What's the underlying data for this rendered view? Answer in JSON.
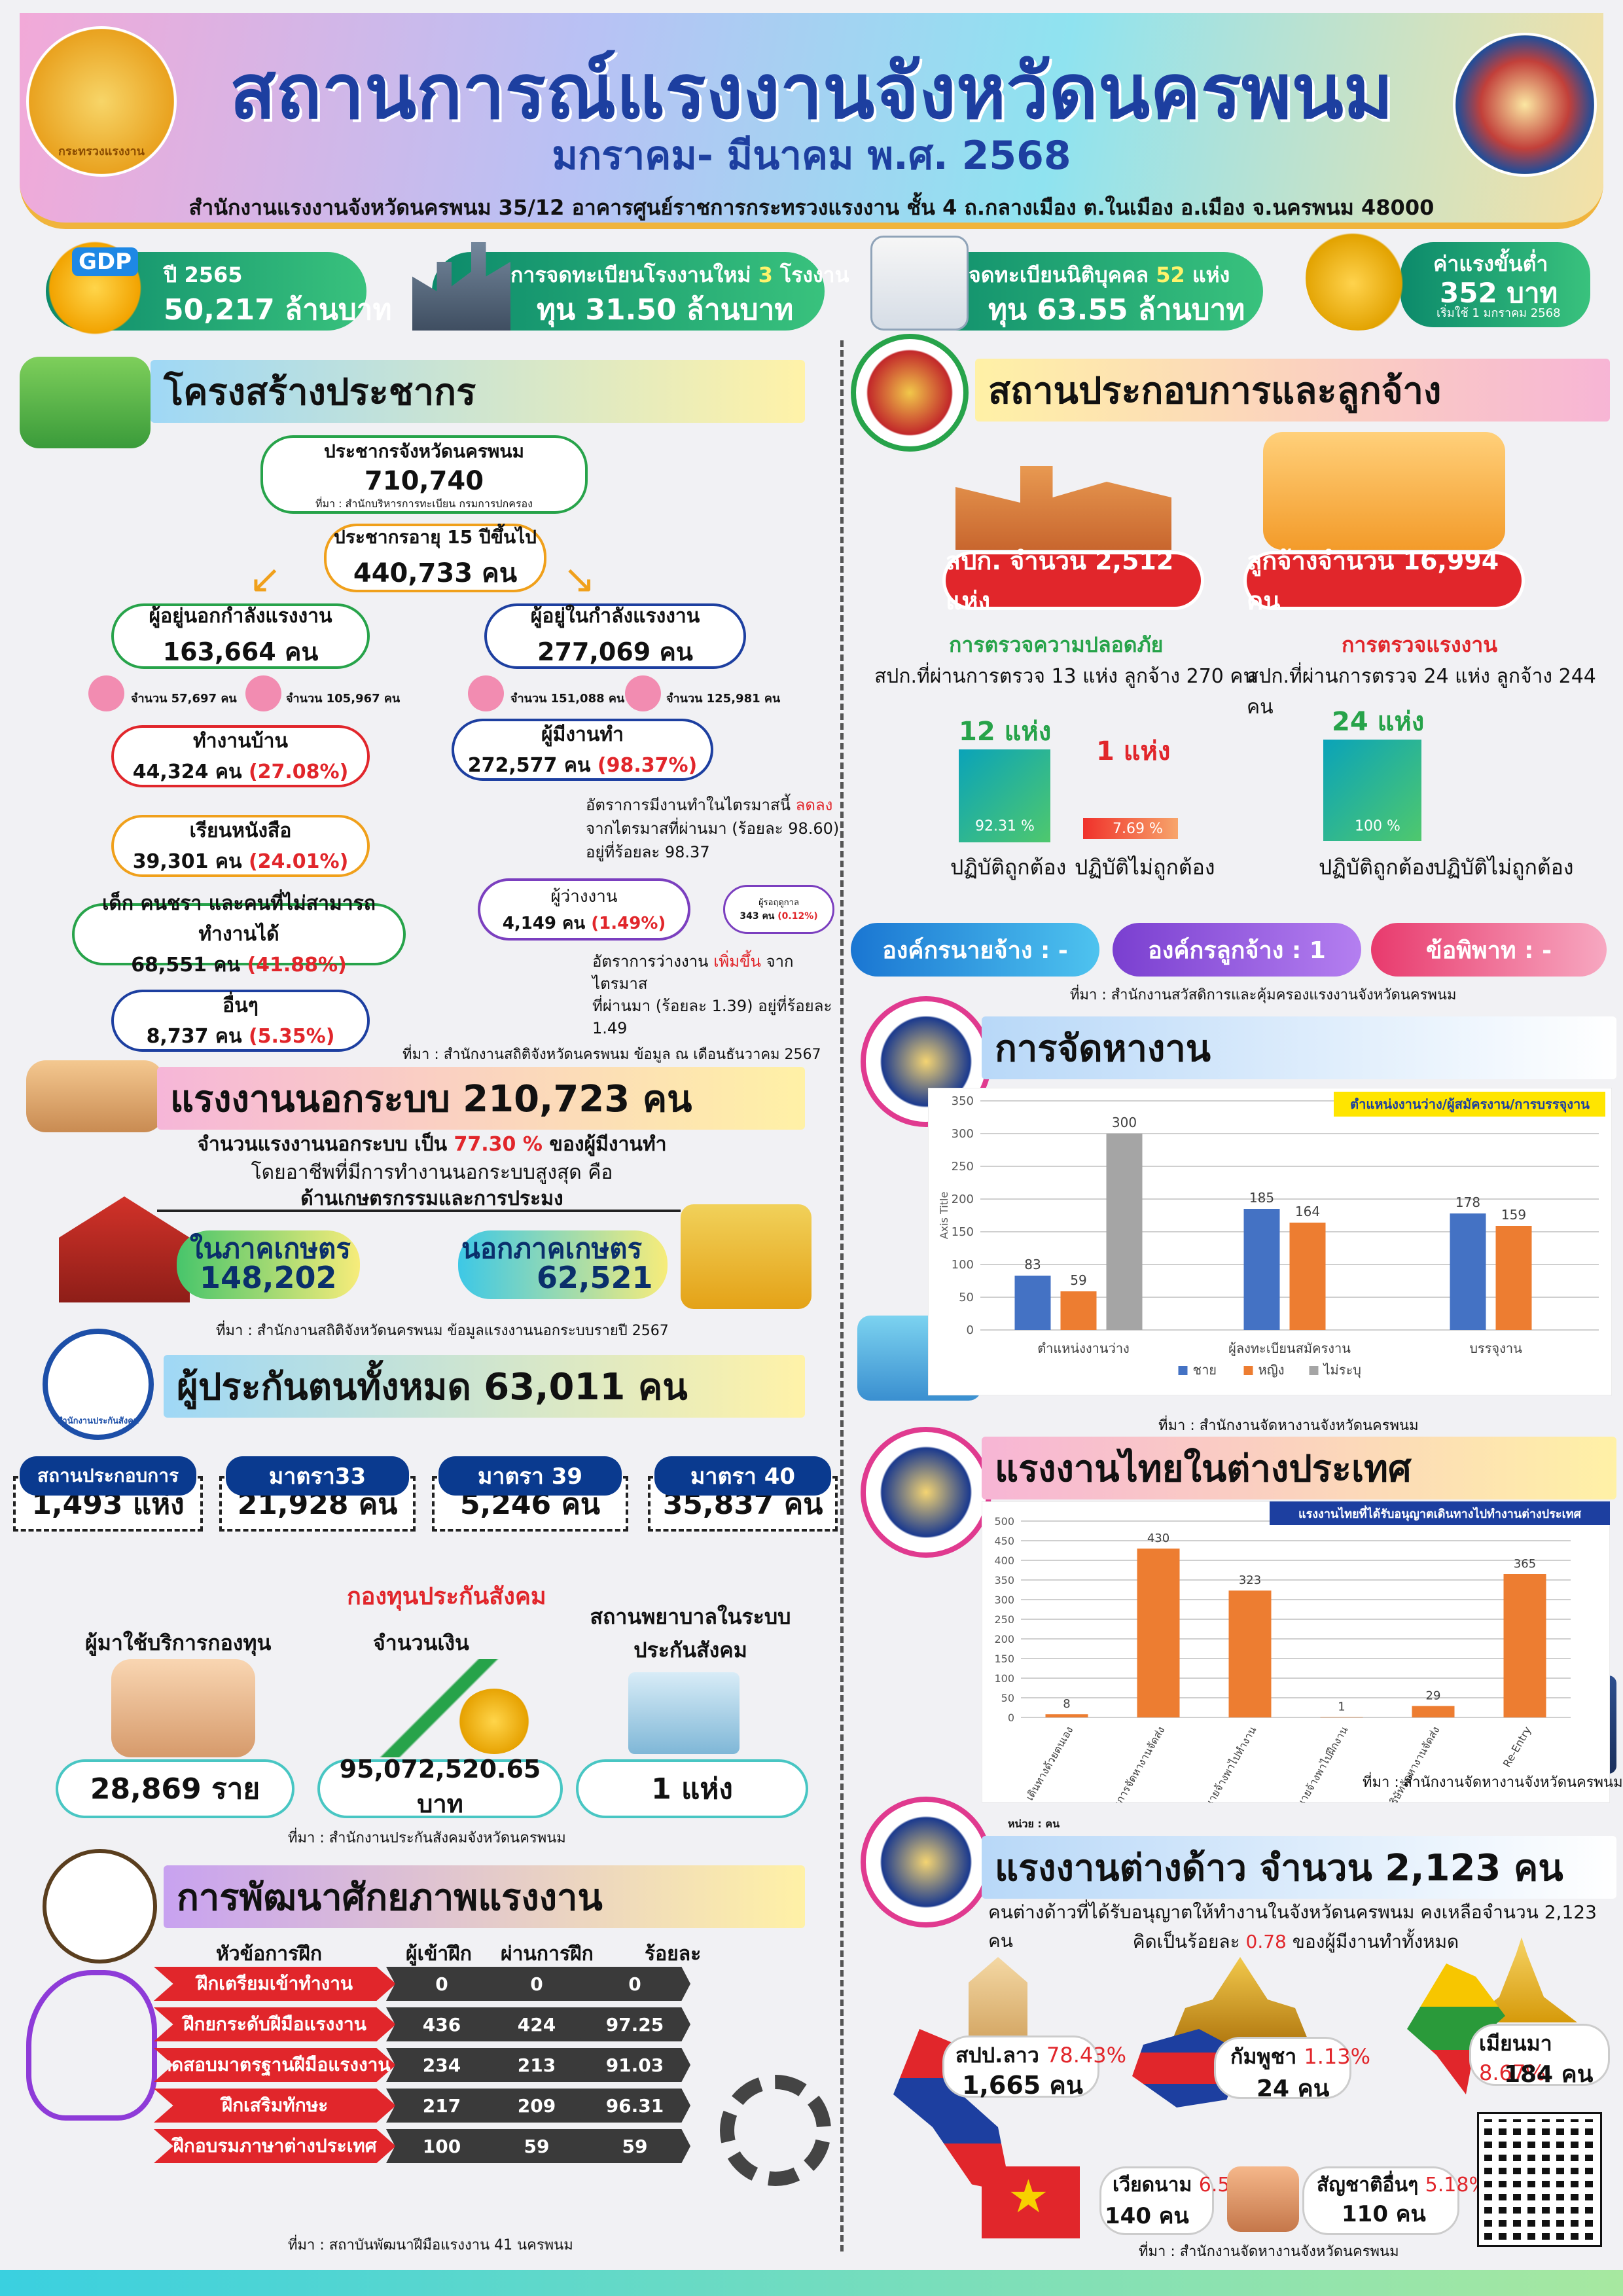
{
  "header": {
    "title": "สถานการณ์แรงงานจังหวัดนครพนม",
    "subtitle": "มกราคม- มีนาคม พ.ศ. 2568",
    "address": "สำนักงานแรงงานจังหวัดนครพนม 35/12 อาคารศูนย์ราชการกระทรวงแรงงาน ชั้น 4 ถ.กลางเมือง ต.ในเมือง อ.เมือง จ.นครพนม 48000",
    "logo_left": "กระทรวงแรงงาน"
  },
  "kpi": {
    "gdp_label": "GDP",
    "gdp_year": "ปี 2565",
    "gdp_value": "50,217 ล้านบาท",
    "factory_line1_a": "การจดทะเบียนโรงงานใหม่",
    "factory_count": "3",
    "factory_unit": "โรงงาน",
    "factory_line2": "ทุน 31.50 ล้านบาท",
    "juristic_a": "จดทะเบียนนิติบุคคล",
    "juristic_count": "52",
    "juristic_unit": "แห่ง",
    "juristic_line2": "ทุน 63.55 ล้านบาท",
    "wage_label": "ค่าแรงขั้นต่ำ",
    "wage_value": "352 บาท",
    "wage_note": "เริ่มใช้ 1 มกราคม 2568"
  },
  "population": {
    "section": "โครงสร้างประชากร",
    "total_label": "ประชากรจังหวัดนครพนม",
    "total_value": "710,740",
    "total_source": "ที่มา : สำนักบริหารการทะเบียน กรมการปกครอง",
    "age15_label": "ประชากรอายุ 15 ปีขึ้นไป",
    "age15_value": "440,733 คน",
    "out_label": "ผู้อยู่นอกกำลังแรงงาน",
    "out_value": "163,664 คน",
    "out_m": "จำนวน 57,697 คน",
    "out_f": "จำนวน 105,967 คน",
    "in_label": "ผู้อยู่ในกำลังแรงงาน",
    "in_value": "277,069 คน",
    "in_m": "จำนวน 151,088 คน",
    "in_f": "จำนวน 125,981 คน",
    "home_label": "ทำงานบ้าน",
    "home_value": "44,324 คน",
    "home_pct": "(27.08%)",
    "study_label": "เรียนหนังสือ",
    "study_value": "39,301 คน",
    "study_pct": "(24.01%)",
    "old_label": "เด็ก คนชรา และคนที่ไม่สามารถทำงานได้",
    "old_value": "68,551 คน",
    "old_pct": "(41.88%)",
    "other_label": "อื่นๆ",
    "other_value": "8,737 คน",
    "other_pct": "(5.35%)",
    "emp_label": "ผู้มีงานทำ",
    "emp_value": "272,577 คน",
    "emp_pct": "(98.37%)",
    "emp_note_a": "อัตราการมีงานทำในไตรมาสนี้",
    "emp_note_red": "ลดลง",
    "emp_note_b": "จากไตรมาสที่ผ่านมา (ร้อยละ 98.60)",
    "emp_note_c": "อยู่ที่ร้อยละ 98.37",
    "unemp_label": "ผู้ว่างงาน",
    "unemp_value": "4,149 คน",
    "unemp_pct": "(1.49%)",
    "wait_label": "ผู้รอฤดูกาล",
    "wait_value": "343 คน",
    "wait_pct": "(0.12%)",
    "unemp_note_a": "อัตราการว่างงาน",
    "unemp_note_red": "เพิ่มขึ้น",
    "unemp_note_b": "จากไตรมาส",
    "unemp_note_c": "ที่ผ่านมา (ร้อยละ 1.39) อยู่ที่ร้อยละ",
    "unemp_note_d": "1.49",
    "source": "ที่มา : สำนักงานสถิติจังหวัดนครพนม ข้อมูล ณ เดือนธันวาคม 2567"
  },
  "informal": {
    "section": "แรงงานนอกระบบ 210,723 คน",
    "line1_a": "จำนวนแรงงานนอกระบบ เป็น",
    "line1_red": "77.30 %",
    "line1_b": "ของผู้มีงานทำ",
    "line2": "โดยอาชีพที่มีการทำงานนอกระบบสูงสุด คือ",
    "line3": "ด้านเกษตรกรรมและการประมง",
    "agri_label": "ในภาคเกษตร",
    "agri_value": "148,202",
    "nonagri_label": "นอกภาคเกษตร",
    "nonagri_value": "62,521",
    "source": "ที่มา : สำนักงานสถิติจังหวัดนครพนม  ข้อมูลแรงงานนอกระบบรายปี 2567"
  },
  "insurance": {
    "section": "ผู้ประกันตนทั้งหมด 63,011 คน",
    "logo": "สำนักงานประกันสังคม",
    "boxes": [
      {
        "label": "สถานประกอบการ",
        "value": "1,493  แห่ง"
      },
      {
        "label": "มาตรา33",
        "value": "21,928 คน"
      },
      {
        "label": "มาตรา 39",
        "value": "5,246 คน"
      },
      {
        "label": "มาตรา 40",
        "value": "35,837 คน"
      }
    ],
    "fund_title": "กองทุนประกันสังคม",
    "users_label": "ผู้มาใช้บริการกองทุน",
    "users_value": "28,869 ราย",
    "amount_label": "จำนวนเงิน",
    "amount_value": "95,072,520.65 บาท",
    "hosp_label1": "สถานพยาบาลในระบบ",
    "hosp_label2": "ประกันสังคม",
    "hosp_value": "1 แห่ง",
    "source": "ที่มา : สำนักงานประกันสังคมจังหวัดนครพนม"
  },
  "training": {
    "section": "การพัฒนาศักยภาพแรงงาน",
    "h_topic": "หัวข้อการฝึก",
    "h_in": "ผู้เข้าฝึก",
    "h_pass": "ผ่านการฝึก",
    "h_pct": "ร้อยละ",
    "rows": [
      {
        "topic": "ฝึกเตรียมเข้าทำงาน",
        "in": "0",
        "pass": "0",
        "pct": "0"
      },
      {
        "topic": "ฝึกยกระดับฝีมือแรงงาน",
        "in": "436",
        "pass": "424",
        "pct": "97.25"
      },
      {
        "topic": "ทดสอบมาตรฐานฝีมือแรงงาน",
        "in": "234",
        "pass": "213",
        "pct": "91.03"
      },
      {
        "topic": "ฝึกเสริมทักษะ",
        "in": "217",
        "pass": "209",
        "pct": "96.31"
      },
      {
        "topic": "ฝึกอบรมภาษาต่างประเทศ",
        "in": "100",
        "pass": "59",
        "pct": "59"
      }
    ],
    "source": "ที่มา : สถาบันพัฒนาฝีมือแรงงาน 41 นครพนม"
  },
  "establishment": {
    "section": "สถานประกอบการและลูกจ้าง",
    "est_badge": "สปก. จำนวน 2,512 แห่ง",
    "emp_badge": "ลูกจ้างจำนวน 16,994 คน",
    "safety_title": "การตรวจความปลอดภัย",
    "safety_sub": "สปก.ที่ผ่านการตรวจ 13 แห่ง ลูกจ้าง 270 คน",
    "labor_title": "การตรวจแรงงาน",
    "labor_sub": "สปก.ที่ผ่านการตรวจ 24 แห่ง ลูกจ้าง 244 คน",
    "s_ok_count": "12 แห่ง",
    "s_ok_pct": "92.31 %",
    "s_ok_value": 0.9231,
    "s_bad_count": "1 แห่ง",
    "s_bad_pct": "7.69 %",
    "s_bad_value": 0.0769,
    "l_ok_count": "24 แห่ง",
    "l_ok_pct": "100 %",
    "l_ok_value": 1.0,
    "ok_label": "ปฏิบัติถูกต้อง",
    "bad_label": "ปฏิบัติไม่ถูกต้อง",
    "org_emp": "องค์กรนายจ้าง : -",
    "org_union": "องค์กรลูกจ้าง : 1",
    "dispute": "ข้อพิพาท : -",
    "source": "ที่มา : สำนักงานสวัสดิการและคุ้มครองแรงงานจังหวัดนครพนม"
  },
  "jobs": {
    "section": "การจัดหางาน",
    "dept": "กรมการจัดหางาน",
    "source": "ที่มา : สำนักงานจัดหางานจังหวัดนครพนม"
  },
  "abroad": {
    "section": "แรงงานไทยในต่างประเทศ",
    "dept": "กรมการจัดหางาน",
    "note": "หน่วย : คน",
    "source": "ที่มา : สำนักงานจัดหางานจังหวัดนครพนม"
  },
  "foreign": {
    "section": "แรงงานต่างด้าว จำนวน 2,123 คน",
    "dept": "กรมการจัดหางาน",
    "line1": "คนต่างด้าวที่ได้รับอนุญาตให้ทำงานในจังหวัดนครพนม คงเหลือจำนวน 2,123 คน",
    "line2_a": "คิดเป็นร้อยละ",
    "line2_red": "0.78",
    "line2_b": "ของผู้มีงานทำทั้งหมด",
    "laos": "สปป.ลาว",
    "laos_pct": "78.43%",
    "laos_val": "1,665 คน",
    "cambodia": "กัมพูชา",
    "cambodia_pct": "1.13%",
    "cambodia_val": "24 คน",
    "myanmar": "เมียนมา",
    "myanmar_pct": "8.67%",
    "myanmar_val": "184 คน",
    "vietnam": "เวียดนาม",
    "vietnam_pct": "6.59%",
    "vietnam_val": "140 คน",
    "other": "สัญชาติอื่นๆ",
    "other_pct": "5.18%",
    "other_val": "110 คน",
    "source": "ที่มา : สำนักงานจัดหางานจังหวัดนครพนม"
  },
  "chart_data": [
    {
      "type": "bar",
      "title": "ตำแหน่งงานว่าง/ผู้สมัครงาน/การบรรจุงาน",
      "ylabel": "Axis Title",
      "ylim": [
        0,
        350
      ],
      "yticks": [
        0,
        50,
        100,
        150,
        200,
        250,
        300,
        350
      ],
      "categories": [
        "ตำแหน่งงานว่าง",
        "ผู้ลงทะเบียนสมัครงาน",
        "บรรจุงาน"
      ],
      "series": [
        {
          "name": "ชาย",
          "color": "#4472c4",
          "values": [
            83,
            185,
            178
          ]
        },
        {
          "name": "หญิง",
          "color": "#ed7d31",
          "values": [
            59,
            164,
            159
          ]
        },
        {
          "name": "ไม่ระบุ",
          "color": "#a5a5a5",
          "values": [
            300,
            null,
            null
          ]
        }
      ],
      "grid": true,
      "legend": "bottom"
    },
    {
      "type": "bar",
      "title": "แรงงานไทยที่ได้รับอนุญาตเดินทางไปทำงานต่างประเทศ",
      "ylim": [
        0,
        500
      ],
      "yticks": [
        0,
        50,
        100,
        150,
        200,
        250,
        300,
        350,
        400,
        450,
        500
      ],
      "categories": [
        "เดินทางด้วยตนเอง",
        "กรมการจัดหางานจัดส่ง",
        "นายจ้างพาไปทำงาน",
        "นายจ้างพาไปฝึกงาน",
        "บริษัทจัดหางานจัดส่ง",
        "Re-Entry"
      ],
      "series": [
        {
          "name": "แรงงานไทยในต่างประเทศ",
          "color": "#ed7d31",
          "values": [
            8,
            430,
            323,
            1,
            29,
            365
          ]
        }
      ],
      "grid": true
    }
  ]
}
